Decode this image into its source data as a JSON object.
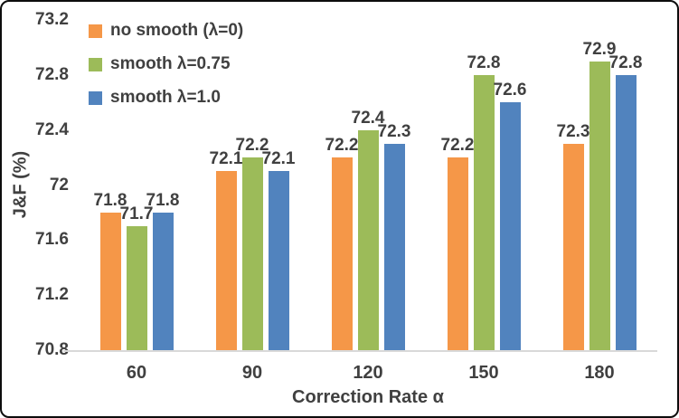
{
  "chart_data": {
    "type": "bar",
    "title": "",
    "xlabel": "Correction Rate α",
    "ylabel": "J&F (%)",
    "categories": [
      "60",
      "90",
      "120",
      "150",
      "180"
    ],
    "series": [
      {
        "name": "no smooth (λ=0)",
        "color": "#F59748",
        "values": [
          71.8,
          72.1,
          72.2,
          72.2,
          72.3
        ],
        "labels": [
          "71.8",
          "72.1",
          "72.2",
          "72.2",
          "72.3"
        ]
      },
      {
        "name": "smooth λ=0.75",
        "color": "#9CBB59",
        "values": [
          71.7,
          72.2,
          72.4,
          72.8,
          72.9
        ],
        "labels": [
          "71.7",
          "72.2",
          "72.4",
          "72.8",
          "72.9"
        ]
      },
      {
        "name": "smooth λ=1.0",
        "color": "#5183BE",
        "values": [
          71.8,
          72.1,
          72.3,
          72.6,
          72.8
        ],
        "labels": [
          "71.8",
          "72.1",
          "72.3",
          "72.6",
          "72.8"
        ]
      }
    ],
    "ylim": [
      70.8,
      73.2
    ],
    "yticks": [
      {
        "label": "73.2",
        "value": 73.2
      },
      {
        "label": "72.8",
        "value": 72.8
      },
      {
        "label": "72.4",
        "value": 72.4
      },
      {
        "label": "72",
        "value": 72.0
      },
      {
        "label": "71.6",
        "value": 71.6
      },
      {
        "label": "71.2",
        "value": 71.2
      },
      {
        "label": "70.8",
        "value": 70.8
      }
    ],
    "grid": false,
    "data_labels": true,
    "legend_position": "top-left"
  },
  "colors": {
    "text": "#404040",
    "axis_line": "#d9d9d9",
    "border": "#0d0d0d",
    "background": "#ffffff"
  }
}
